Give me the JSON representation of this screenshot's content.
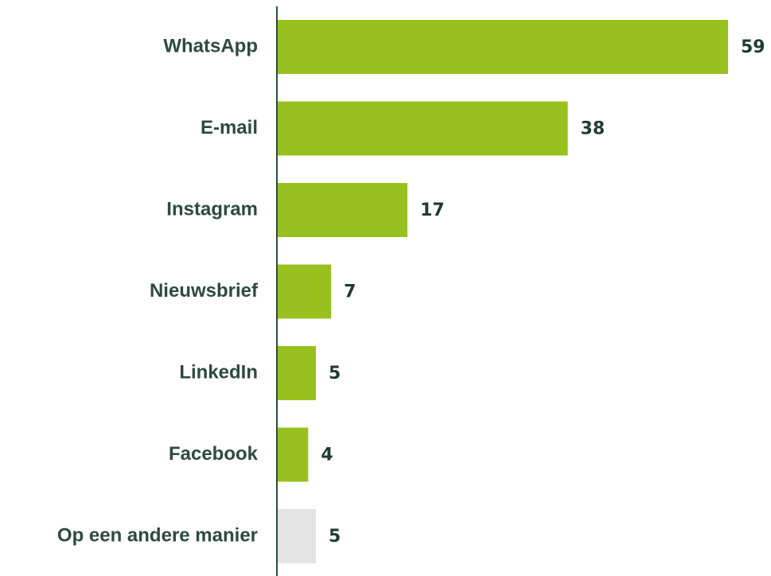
{
  "chart_data": {
    "type": "bar",
    "orientation": "horizontal",
    "categories": [
      "WhatsApp",
      "E-mail",
      "Instagram",
      "Nieuwsbrief",
      "LinkedIn",
      "Facebook",
      "Op een andere manier"
    ],
    "values": [
      59,
      38,
      17,
      7,
      5,
      4,
      5
    ],
    "data_labels": [
      "59",
      "38",
      "17",
      "7",
      "5",
      "4",
      "5"
    ],
    "bar_colors": [
      "#97c11f",
      "#97c11f",
      "#97c11f",
      "#97c11f",
      "#97c11f",
      "#97c11f",
      "#e3e3e3"
    ],
    "title": "",
    "xlabel": "",
    "ylabel": "",
    "xlim": [
      0,
      59
    ],
    "grid": false,
    "legend": "none"
  },
  "colors": {
    "bar": "#97c11f",
    "bar_other": "#e3e3e3",
    "label_text": "#2d4a3e",
    "value_text": "#1f3b33",
    "axis": "#2d4a3e"
  }
}
